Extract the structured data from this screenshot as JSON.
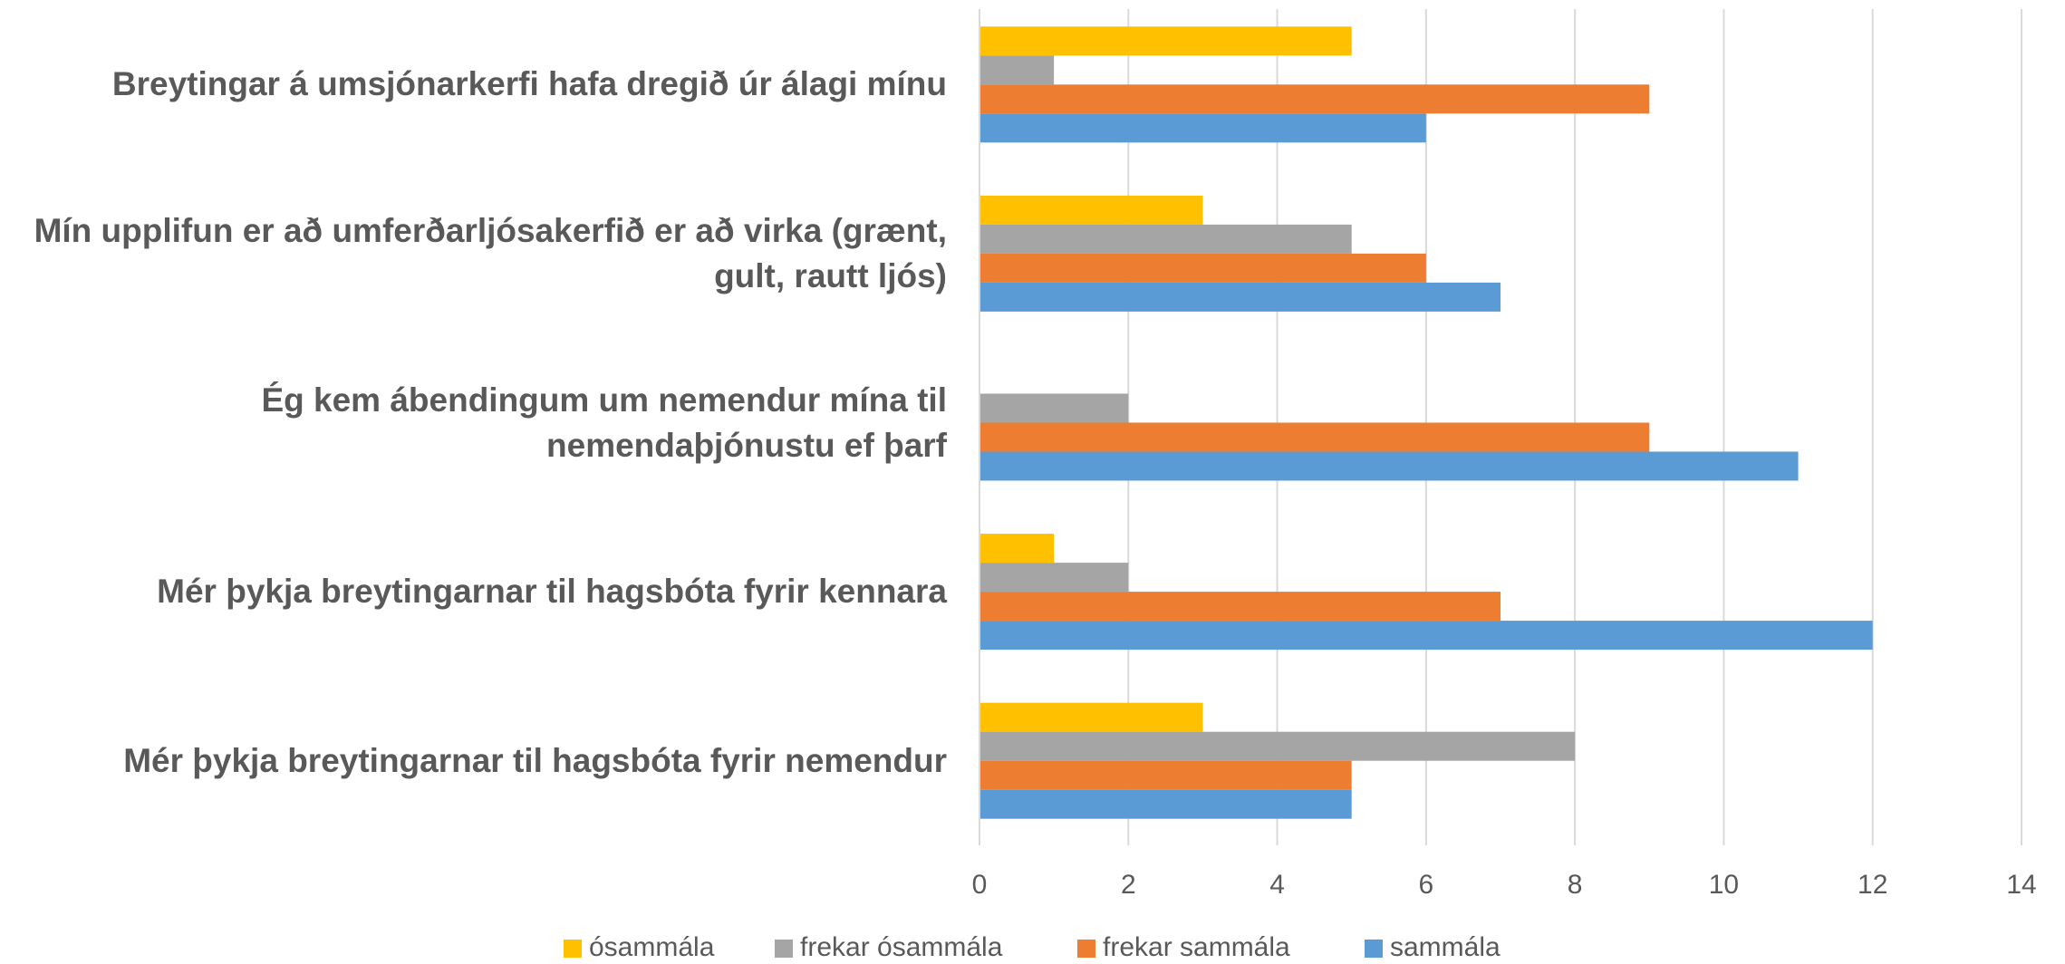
{
  "chart_data": {
    "type": "bar",
    "orientation": "horizontal",
    "categories": [
      "Breytingar á umsjónarkerfi hafa dregið úr álagi mínu",
      "Mín upplifun er að umferðarljósakerfið er að virka (grænt, gult, rautt ljós)",
      "Ég kem ábendingum um nemendur mína til nemendaþjónustu ef þarf",
      "Mér þykja breytingarnar til hagsbóta fyrir kennara",
      "Mér þykja breytingarnar til hagsbóta fyrir nemendur"
    ],
    "series": [
      {
        "name": "ósammála",
        "color": "#ffc000",
        "values": [
          5,
          3,
          0,
          1,
          3
        ]
      },
      {
        "name": "frekar ósammála",
        "color": "#a5a5a5",
        "values": [
          1,
          5,
          2,
          2,
          8
        ]
      },
      {
        "name": "frekar sammála",
        "color": "#ed7d31",
        "values": [
          9,
          6,
          9,
          7,
          5
        ]
      },
      {
        "name": "sammála",
        "color": "#5b9bd5",
        "values": [
          6,
          7,
          11,
          12,
          5
        ]
      }
    ],
    "xlim": [
      0,
      14
    ],
    "xticks": [
      0,
      2,
      4,
      6,
      8,
      10,
      12,
      14
    ],
    "grid": true,
    "legend": "bottom"
  }
}
